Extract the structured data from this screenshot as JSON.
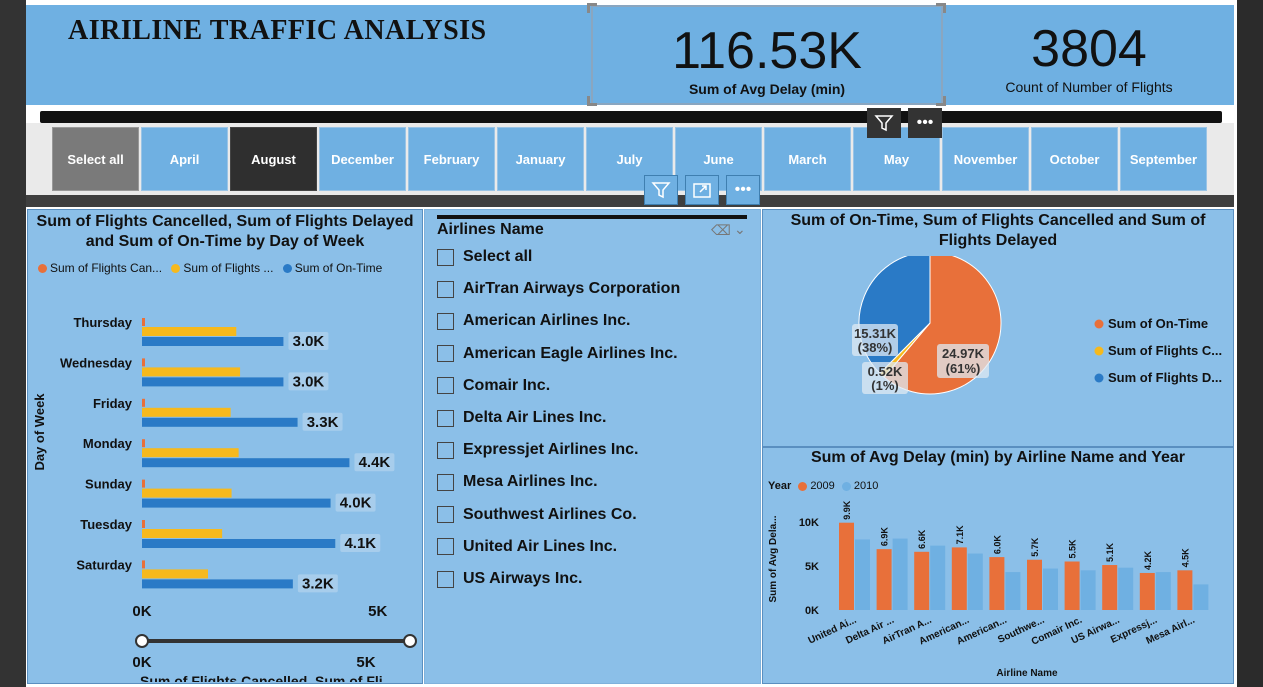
{
  "app": {
    "title": "AIRILINE TRAFFIC ANALYSIS"
  },
  "kpis": [
    {
      "value": "116.53K",
      "label": "Sum of Avg Delay (min)"
    },
    {
      "value": "3804",
      "label": "Count of Number of Flights"
    }
  ],
  "month_slicer": {
    "items": [
      "Select all",
      "April",
      "August",
      "December",
      "February",
      "January",
      "July",
      "June",
      "March",
      "May",
      "November",
      "October",
      "September"
    ],
    "selected": "August"
  },
  "icons": {
    "filter": "filter-icon",
    "more": "more-options-icon",
    "focus": "focus-mode-icon",
    "eraser": "eraser-icon",
    "chevron": "chevron-down-icon"
  },
  "colors": {
    "cancelled": "#e8703a",
    "delayed": "#f6b91d",
    "ontime": "#2a7ac6",
    "y2009": "#e8703a",
    "y2010": "#6fb0e2"
  },
  "bar_chart": {
    "title": "Sum of Flights Cancelled, Sum of Flights Delayed and Sum of On-Time by Day of Week",
    "legend": [
      "Sum of Flights Can...",
      "Sum of Flights ...",
      "Sum of On-Time"
    ],
    "axis_label_y": "Day of Week",
    "axis_label_x": "Sum of Flights Cancelled, Sum of Fli...",
    "ticks_x": [
      "0K",
      "5K"
    ],
    "slider_labels": [
      "0K",
      "5K"
    ]
  },
  "airline_slicer": {
    "header": "Airlines Name",
    "items": [
      "Select all",
      "AirTran Airways Corporation",
      "American Airlines Inc.",
      "American Eagle Airlines Inc.",
      "Comair Inc.",
      "Delta Air Lines Inc.",
      "Expressjet Airlines Inc.",
      "Mesa Airlines Inc.",
      "Southwest Airlines Co.",
      "United Air Lines Inc.",
      "US Airways Inc."
    ]
  },
  "pie_chart": {
    "title": "Sum of On-Time, Sum of Flights Cancelled and Sum of Flights Delayed",
    "legend": [
      "Sum of On-Time",
      "Sum of Flights C...",
      "Sum of Flights D..."
    ],
    "labels": [
      "24.97K",
      "(61%)",
      "15.31K",
      "(38%)",
      "0.52K",
      "(1%)"
    ]
  },
  "col_chart": {
    "title": "Sum of Avg Delay (min) by Airline Name and Year",
    "legend_title": "Year",
    "legend": [
      "2009",
      "2010"
    ],
    "axis_label_y": "Sum of Avg Dela...",
    "axis_label_x": "Airline Name",
    "ticks_y": [
      "10K",
      "5K",
      "0K"
    ]
  },
  "chart_data": [
    {
      "type": "bar",
      "title": "Sum of Flights Cancelled, Sum of Flights Delayed and Sum of On-Time by Day of Week",
      "categories": [
        "Thursday",
        "Wednesday",
        "Friday",
        "Monday",
        "Sunday",
        "Tuesday",
        "Saturday"
      ],
      "series": [
        {
          "name": "Sum of Flights Cancelled",
          "values": [
            50,
            50,
            50,
            50,
            50,
            50,
            50
          ]
        },
        {
          "name": "Sum of Flights Delayed",
          "values": [
            2000,
            2080,
            1880,
            2050,
            1900,
            1700,
            1400
          ]
        },
        {
          "name": "Sum of On-Time",
          "values": [
            3000,
            3000,
            3300,
            4400,
            4000,
            4100,
            3200
          ],
          "labels": [
            "3.0K",
            "3.0K",
            "3.3K",
            "4.4K",
            "4.0K",
            "4.1K",
            "3.2K"
          ]
        }
      ],
      "xlim": [
        0,
        7000
      ],
      "xlabel": "Sum of Flights Cancelled, Sum of Fli...",
      "ylabel": "Day of Week"
    },
    {
      "type": "pie",
      "title": "Sum of On-Time, Sum of Flights Cancelled and Sum of Flights Delayed",
      "slices": [
        {
          "name": "Sum of On-Time",
          "value": 24970,
          "label": "24.97K",
          "pct": "(61%)"
        },
        {
          "name": "Sum of Flights Cancelled",
          "value": 520,
          "label": "0.52K",
          "pct": "(1%)"
        },
        {
          "name": "Sum of Flights Delayed",
          "value": 15310,
          "label": "15.31K",
          "pct": "(38%)"
        }
      ]
    },
    {
      "type": "bar",
      "title": "Sum of Avg Delay (min) by Airline Name and Year",
      "categories": [
        "United Ai...",
        "Delta Air ...",
        "AirTran A...",
        "American...",
        "American...",
        "Southwe...",
        "Comair Inc.",
        "US Airwa...",
        "Expressj...",
        "Mesa Airl..."
      ],
      "series": [
        {
          "name": "2009",
          "values": [
            9900,
            6900,
            6600,
            7100,
            6000,
            5700,
            5500,
            5100,
            4200,
            4500
          ],
          "labels": [
            "9.9K",
            "6.9K",
            "6.6K",
            "7.1K",
            "6.0K",
            "5.7K",
            "5.5K",
            "5.1K",
            "4.2K",
            "4.5K"
          ]
        },
        {
          "name": "2010",
          "values": [
            8000,
            8100,
            7300,
            6400,
            4300,
            4700,
            4500,
            4800,
            4300,
            2900
          ]
        }
      ],
      "ylim": [
        0,
        11000
      ],
      "xlabel": "Airline Name",
      "ylabel": "Sum of Avg Dela..."
    }
  ]
}
